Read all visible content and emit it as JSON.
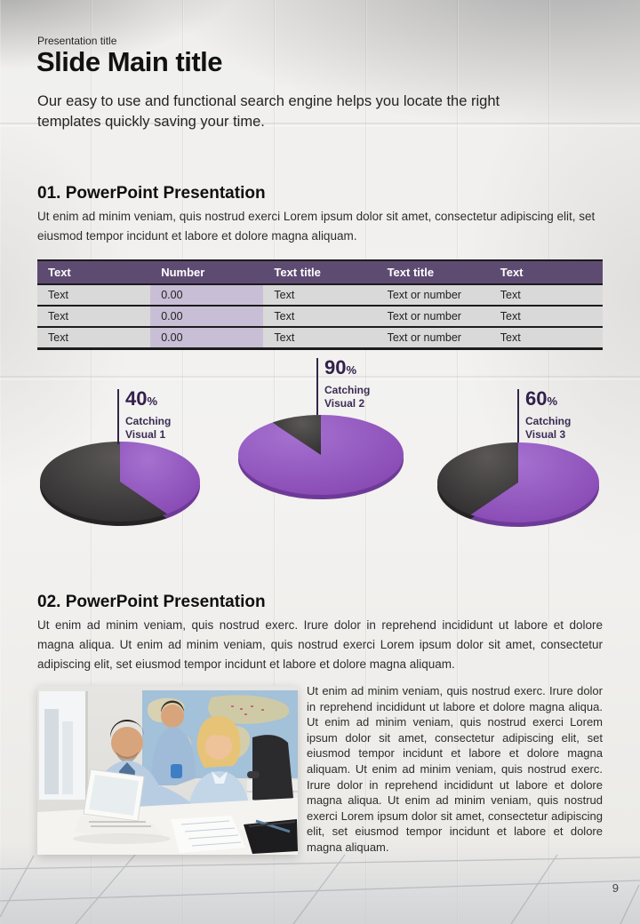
{
  "header": {
    "eyebrow": "Presentation title",
    "title": "Slide Main title",
    "subtitle": "Our easy to use and functional search engine helps you locate the right templates quickly saving your time."
  },
  "section_01": {
    "heading": "01. PowerPoint Presentation",
    "body": "Ut enim ad minim veniam, quis nostrud exerci  Lorem ipsum dolor sit amet, consectetur adipiscing elit, set eiusmod tempor incidunt et labore et dolore magna aliquam."
  },
  "table": {
    "columns": [
      "Text",
      "Number",
      "Text title",
      "Text title",
      "Text"
    ],
    "rows": [
      [
        "Text",
        "0.00",
        "Text",
        "Text or number",
        "Text"
      ],
      [
        "Text",
        "0.00",
        "Text",
        "Text or number",
        "Text"
      ],
      [
        "Text",
        "0.00",
        "Text",
        "Text or number",
        "Text"
      ]
    ],
    "header_bg": "#5e4b72",
    "number_column_bg": "#c8bfd6",
    "row_bg": "#d9d9d9"
  },
  "chart_data": {
    "type": "pie",
    "legend_position": "none",
    "palette": {
      "highlight": "#9456c0",
      "remainder": "#4a4747",
      "label_text": "#33204c"
    },
    "charts": [
      {
        "value": 40,
        "suffix": "%",
        "label": "Catching Visual 1",
        "series": [
          {
            "name": "highlight",
            "value": 40
          },
          {
            "name": "remainder",
            "value": 60
          }
        ]
      },
      {
        "value": 90,
        "suffix": "%",
        "label": "Catching Visual 2",
        "series": [
          {
            "name": "highlight",
            "value": 90
          },
          {
            "name": "remainder",
            "value": 10
          }
        ]
      },
      {
        "value": 60,
        "suffix": "%",
        "label": "Catching Visual 3",
        "series": [
          {
            "name": "highlight",
            "value": 60
          },
          {
            "name": "remainder",
            "value": 40
          }
        ]
      }
    ]
  },
  "section_02": {
    "heading": "02. PowerPoint Presentation",
    "body": "Ut enim ad minim veniam, quis nostrud exerc. Irure dolor in reprehend incididunt ut labore et dolore magna aliqua. Ut enim ad minim veniam, quis nostrud exerci  Lorem ipsum dolor sit amet, consectetur adipiscing elit, set eiusmod tempor incidunt et labore et dolore magna aliquam."
  },
  "media": {
    "side_text": "Ut enim ad minim veniam, quis nostrud exerc. Irure dolor in reprehend incididunt ut labore et dolore magna aliqua. Ut enim ad minim veniam, quis nostrud exerci  Lorem ipsum dolor sit amet, consectetur adipiscing elit, set eiusmod tempor incidunt et labore et dolore magna aliquam. Ut enim ad minim veniam, quis nostrud exerc. Irure dolor in reprehend incididunt ut labore et dolore magna aliqua. Ut enim ad minim veniam, quis nostrud exerci  Lorem ipsum dolor sit amet, consectetur adipiscing elit, set eiusmod tempor incidunt et labore et dolore magna aliquam."
  },
  "footer": {
    "page_number": "9"
  }
}
